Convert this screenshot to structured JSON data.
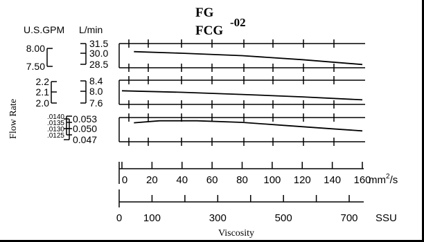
{
  "title": {
    "line1": "FG",
    "line2": "FCG",
    "suffix": "-02"
  },
  "units_header": {
    "gpm": "U.S.GPM",
    "lmin": "L/min"
  },
  "y_axis_label": "Flow Rate",
  "x_axis_label": "Viscosity",
  "chart_data": [
    {
      "type": "line",
      "panel": "top",
      "left_ticks": [
        "8.00",
        "7.50"
      ],
      "right_ticks": [
        "31.5",
        "30.0",
        "28.5"
      ],
      "ylim_lmin": [
        28.5,
        31.5
      ],
      "x_unit": "mm2/s",
      "series": [
        {
          "x": [
            8,
            40,
            80,
            120,
            160
          ],
          "y": [
            30.5,
            30.3,
            30.0,
            29.5,
            28.9
          ]
        }
      ]
    },
    {
      "type": "line",
      "panel": "middle",
      "left_ticks": [
        "2.2",
        "2.1",
        "2.0"
      ],
      "right_ticks": [
        "8.4",
        "8.0",
        "7.6"
      ],
      "ylim_lmin": [
        7.6,
        8.4
      ],
      "x_unit": "mm2/s",
      "series": [
        {
          "x": [
            0,
            40,
            80,
            120,
            160
          ],
          "y": [
            8.05,
            8.0,
            7.93,
            7.85,
            7.75
          ]
        }
      ]
    },
    {
      "type": "line",
      "panel": "bottom",
      "left_ticks": [
        ".0140",
        ".0135",
        ".0130",
        ".0125"
      ],
      "right_ticks": [
        "0.053",
        "0.050",
        "0.047"
      ],
      "ylim_lmin": [
        0.047,
        0.053
      ],
      "x_unit": "mm2/s",
      "series": [
        {
          "x": [
            8,
            25,
            50,
            80,
            110,
            140,
            160
          ],
          "y": [
            0.0517,
            0.0522,
            0.0522,
            0.0518,
            0.051,
            0.0502,
            0.0497
          ]
        }
      ]
    }
  ],
  "x_axis_mm2s": {
    "ticks": [
      "0",
      "20",
      "40",
      "60",
      "80",
      "100",
      "120",
      "140",
      "160"
    ],
    "unit_base": "mm",
    "unit_sup": "2",
    "unit_tail": "/s",
    "range": [
      0,
      160
    ]
  },
  "x_axis_ssu": {
    "ticks": [
      "0",
      "100",
      "300",
      "500",
      "700"
    ],
    "tick_values": [
      0,
      100,
      300,
      500,
      700
    ],
    "unit": "SSU",
    "range": [
      0,
      740
    ]
  }
}
